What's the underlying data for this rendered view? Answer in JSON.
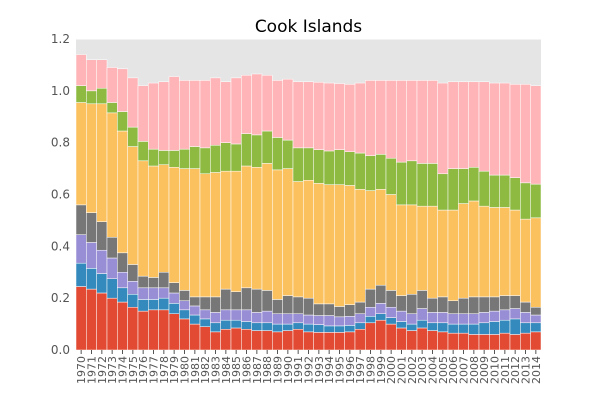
{
  "chart_data": {
    "type": "bar",
    "stacked": true,
    "title": "Cook Islands",
    "xlabel": "",
    "ylabel": "",
    "ylim": [
      0,
      1.2
    ],
    "yticks": [
      0.0,
      0.2,
      0.4,
      0.6,
      0.8,
      1.0,
      1.2
    ],
    "ytick_labels": [
      "0.0",
      "0.2",
      "0.4",
      "0.6",
      "0.8",
      "1.0",
      "1.2"
    ],
    "grid": true,
    "plot_background": "#e5e5e5",
    "categories": [
      "1970",
      "1971",
      "1972",
      "1973",
      "1974",
      "1975",
      "1976",
      "1977",
      "1978",
      "1979",
      "1980",
      "1981",
      "1982",
      "1983",
      "1984",
      "1985",
      "1986",
      "1987",
      "1988",
      "1989",
      "1990",
      "1991",
      "1992",
      "1993",
      "1994",
      "1995",
      "1996",
      "1997",
      "1998",
      "1999",
      "2000",
      "2001",
      "2002",
      "2003",
      "2004",
      "2005",
      "2006",
      "2007",
      "2008",
      "2009",
      "2010",
      "2011",
      "2012",
      "2013",
      "2014"
    ],
    "series": [
      {
        "color": "#e24a33",
        "values": [
          0.245,
          0.235,
          0.22,
          0.2,
          0.185,
          0.165,
          0.15,
          0.155,
          0.155,
          0.14,
          0.12,
          0.1,
          0.09,
          0.07,
          0.08,
          0.085,
          0.08,
          0.075,
          0.075,
          0.07,
          0.075,
          0.08,
          0.07,
          0.068,
          0.068,
          0.068,
          0.07,
          0.08,
          0.105,
          0.115,
          0.1,
          0.085,
          0.075,
          0.085,
          0.075,
          0.07,
          0.065,
          0.065,
          0.06,
          0.06,
          0.06,
          0.065,
          0.06,
          0.065,
          0.07
        ]
      },
      {
        "color": "#348abd",
        "values": [
          0.09,
          0.08,
          0.075,
          0.075,
          0.055,
          0.05,
          0.045,
          0.04,
          0.045,
          0.04,
          0.035,
          0.035,
          0.03,
          0.035,
          0.035,
          0.03,
          0.03,
          0.03,
          0.03,
          0.03,
          0.025,
          0.025,
          0.03,
          0.03,
          0.025,
          0.025,
          0.025,
          0.025,
          0.025,
          0.025,
          0.025,
          0.025,
          0.025,
          0.03,
          0.03,
          0.035,
          0.035,
          0.035,
          0.04,
          0.045,
          0.05,
          0.05,
          0.06,
          0.04,
          0.035
        ]
      },
      {
        "color": "#988ed5",
        "values": [
          0.11,
          0.1,
          0.09,
          0.08,
          0.06,
          0.05,
          0.045,
          0.045,
          0.04,
          0.04,
          0.035,
          0.035,
          0.035,
          0.04,
          0.04,
          0.04,
          0.045,
          0.04,
          0.045,
          0.04,
          0.04,
          0.035,
          0.035,
          0.035,
          0.04,
          0.035,
          0.035,
          0.035,
          0.035,
          0.04,
          0.04,
          0.04,
          0.04,
          0.045,
          0.04,
          0.04,
          0.04,
          0.04,
          0.04,
          0.04,
          0.04,
          0.04,
          0.04,
          0.04,
          0.03
        ]
      },
      {
        "color": "#777777",
        "values": [
          0.115,
          0.115,
          0.11,
          0.08,
          0.075,
          0.065,
          0.045,
          0.04,
          0.06,
          0.04,
          0.04,
          0.035,
          0.05,
          0.06,
          0.08,
          0.07,
          0.085,
          0.09,
          0.08,
          0.055,
          0.07,
          0.065,
          0.065,
          0.045,
          0.045,
          0.04,
          0.045,
          0.045,
          0.07,
          0.07,
          0.065,
          0.06,
          0.075,
          0.07,
          0.055,
          0.06,
          0.05,
          0.06,
          0.065,
          0.06,
          0.055,
          0.055,
          0.05,
          0.04,
          0.03
        ]
      },
      {
        "color": "#fbc15e",
        "values": [
          0.395,
          0.42,
          0.455,
          0.48,
          0.47,
          0.455,
          0.445,
          0.43,
          0.415,
          0.445,
          0.47,
          0.495,
          0.475,
          0.48,
          0.455,
          0.465,
          0.47,
          0.47,
          0.49,
          0.5,
          0.49,
          0.445,
          0.455,
          0.465,
          0.46,
          0.47,
          0.46,
          0.435,
          0.38,
          0.37,
          0.37,
          0.35,
          0.345,
          0.325,
          0.355,
          0.335,
          0.35,
          0.365,
          0.37,
          0.35,
          0.345,
          0.34,
          0.33,
          0.32,
          0.345
        ]
      },
      {
        "color": "#8eba42",
        "values": [
          0.065,
          0.05,
          0.06,
          0.04,
          0.075,
          0.075,
          0.075,
          0.065,
          0.055,
          0.065,
          0.075,
          0.085,
          0.1,
          0.105,
          0.11,
          0.105,
          0.125,
          0.125,
          0.125,
          0.125,
          0.11,
          0.13,
          0.125,
          0.13,
          0.13,
          0.135,
          0.13,
          0.14,
          0.135,
          0.135,
          0.14,
          0.165,
          0.17,
          0.165,
          0.165,
          0.14,
          0.16,
          0.135,
          0.13,
          0.135,
          0.125,
          0.125,
          0.125,
          0.14,
          0.13
        ]
      },
      {
        "color": "#ffb5b8",
        "values": [
          0.12,
          0.12,
          0.11,
          0.135,
          0.165,
          0.19,
          0.215,
          0.255,
          0.265,
          0.285,
          0.265,
          0.255,
          0.26,
          0.26,
          0.235,
          0.255,
          0.225,
          0.235,
          0.215,
          0.22,
          0.235,
          0.255,
          0.255,
          0.26,
          0.262,
          0.255,
          0.26,
          0.27,
          0.29,
          0.285,
          0.3,
          0.315,
          0.31,
          0.32,
          0.32,
          0.35,
          0.335,
          0.335,
          0.33,
          0.345,
          0.355,
          0.355,
          0.36,
          0.38,
          0.38
        ]
      }
    ]
  }
}
